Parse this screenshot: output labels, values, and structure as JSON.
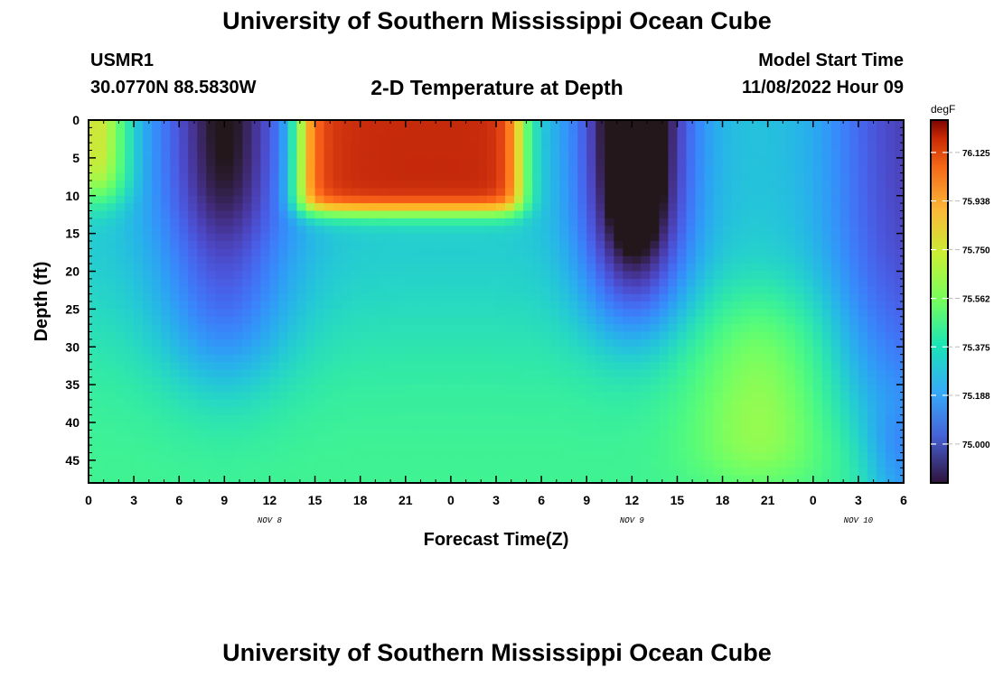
{
  "header": {
    "title": "University of Southern Mississippi Ocean Cube",
    "station": "USMR1",
    "coords": "30.0770N  88.5830W",
    "subtitle": "2-D Temperature at Depth",
    "model_start_label": "Model Start Time",
    "model_start_value": "11/08/2022 Hour 09"
  },
  "footer": {
    "title": "University of Southern Mississippi Ocean Cube"
  },
  "chart_data": {
    "type": "heatmap",
    "title": "2-D Temperature at Depth",
    "xlabel": "Forecast Time(Z)",
    "ylabel": "Depth (ft)",
    "x_ticks": [
      "0",
      "3",
      "6",
      "9",
      "12",
      "15",
      "18",
      "21",
      "0",
      "3",
      "6",
      "9",
      "12",
      "15",
      "18",
      "21",
      "0",
      "3",
      "6"
    ],
    "x_range_hours": [
      0,
      54
    ],
    "day_labels": [
      {
        "label": "NOV 8",
        "hour": 12
      },
      {
        "label": "NOV 9",
        "hour": 36
      },
      {
        "label": "NOV 10",
        "hour": 51
      }
    ],
    "y_ticks": [
      "0",
      "5",
      "10",
      "15",
      "20",
      "25",
      "30",
      "35",
      "40",
      "45"
    ],
    "y_range_ft": [
      0,
      48
    ],
    "y_inverted": true,
    "colorbar": {
      "unit": "degF",
      "ticks": [
        "76.125",
        "75.938",
        "75.750",
        "75.562",
        "75.375",
        "75.188",
        "75.000"
      ],
      "range": [
        74.85,
        76.25
      ],
      "colormap": "turbo"
    },
    "grid": "off",
    "features_degF": [
      {
        "hour_range": [
          0,
          2
        ],
        "depth_range": [
          0,
          10
        ],
        "value": 75.7
      },
      {
        "hour_range": [
          6,
          12
        ],
        "depth_range": [
          0,
          12
        ],
        "value": 74.9
      },
      {
        "hour_range": [
          14,
          28
        ],
        "depth_range": [
          0,
          12
        ],
        "value": 76.0
      },
      {
        "hour_range": [
          33,
          39
        ],
        "depth_range": [
          0,
          27
        ],
        "value": 74.8
      },
      {
        "hour_range": [
          16,
          30
        ],
        "depth_range": [
          20,
          48
        ],
        "value": 75.3
      },
      {
        "hour_range": [
          34,
          40
        ],
        "depth_range": [
          40,
          48
        ],
        "value": 75.5
      },
      {
        "hour_range": [
          41,
          49
        ],
        "depth_range": [
          25,
          48
        ],
        "value": 75.5
      },
      {
        "hour_range": [
          50,
          54
        ],
        "depth_range": [
          0,
          40
        ],
        "value": 74.95
      }
    ]
  }
}
